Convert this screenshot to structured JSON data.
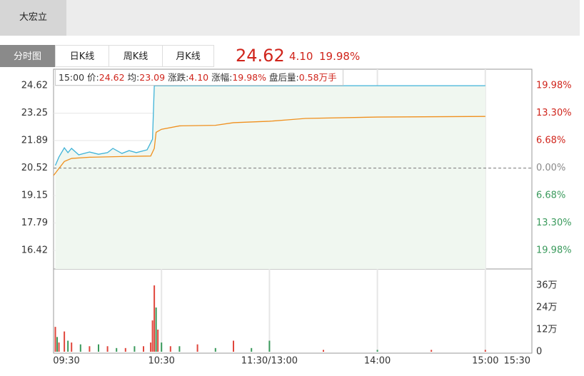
{
  "header": {
    "stock_name": "大宏立"
  },
  "tabs": [
    "分时图",
    "日K线",
    "周K线",
    "月K线"
  ],
  "quote": {
    "price": "24.62",
    "change": "4.10",
    "change_pct": "19.98%"
  },
  "info": [
    [
      "15:00",
      ""
    ],
    [
      "价:",
      "24.62"
    ],
    [
      "均:",
      "23.09"
    ],
    [
      "涨跌:",
      "4.10"
    ],
    [
      "涨幅:",
      "19.98%"
    ],
    [
      "盘后量:",
      "0.58万手"
    ]
  ],
  "chart_data": {
    "type": "line",
    "xticks": [
      "09:30",
      "10:30",
      {
        "value": "11:30",
        "label": "11:30/13:00"
      },
      "14:00",
      "15:00",
      "15:30"
    ],
    "ylim": [
      15.5,
      25.44
    ],
    "yticks": [
      24.62,
      23.25,
      21.89,
      20.52,
      19.15,
      17.79,
      16.42
    ],
    "y2lim": [
      -24.46,
      23.98
    ],
    "y2ticks": [
      {
        "value": 19.98,
        "label": "19.98%"
      },
      {
        "value": 13.3,
        "label": "13.30%"
      },
      {
        "value": 6.68,
        "label": "6.68%"
      },
      {
        "value": 0,
        "label": "0.00%"
      },
      {
        "value": -6.68,
        "label": "6.68%"
      },
      {
        "value": -13.3,
        "label": "13.30%"
      },
      {
        "value": -19.98,
        "label": "19.98%"
      }
    ],
    "y2_colors": {
      "up": "#d0251c",
      "flat": "#888888",
      "down": "#3a9a5c"
    },
    "baseline": 20.52,
    "grid": true,
    "series": [
      {
        "color": "#3fb3d8",
        "fill": "#f0f7f0",
        "x": [
          "09:31",
          "09:33",
          "09:36",
          "09:38",
          "09:40",
          "09:44",
          "09:50",
          "09:55",
          "10:00",
          "10:03",
          "10:08",
          "10:12",
          "10:16",
          "10:22",
          "10:25",
          "10:26",
          "15:00"
        ],
        "values": [
          20.65,
          21.07,
          21.53,
          21.29,
          21.5,
          21.18,
          21.32,
          21.21,
          21.29,
          21.5,
          21.25,
          21.39,
          21.29,
          21.43,
          21.96,
          24.62,
          24.62
        ]
      },
      {
        "color": "#f0901e",
        "x": [
          "09:30",
          "09:33",
          "09:36",
          "09:40",
          "09:50",
          "10:10",
          "10:24",
          "10:26",
          "10:27",
          "10:30",
          "10:40",
          "11:00",
          "11:10",
          "11:30",
          "13:10",
          "13:20",
          "14:00",
          "15:00"
        ],
        "values": [
          20.15,
          20.5,
          20.85,
          21.0,
          21.06,
          21.1,
          21.12,
          21.5,
          22.3,
          22.45,
          22.62,
          22.65,
          22.78,
          22.85,
          22.92,
          22.99,
          23.06,
          23.09
        ]
      }
    ],
    "volume": {
      "ylim": [
        0,
        44.9
      ],
      "yticks": [
        {
          "value": 36,
          "label": "36万"
        },
        {
          "value": 24,
          "label": "24万"
        },
        {
          "value": 12,
          "label": "12万"
        },
        0
      ],
      "x": [
        "09:31",
        "09:32",
        "09:33",
        "09:36",
        "09:38",
        "09:40",
        "09:45",
        "09:50",
        "09:55",
        "10:00",
        "10:05",
        "10:10",
        "10:15",
        "10:20",
        "10:24",
        "10:25",
        "10:26",
        "10:27",
        "10:28",
        "10:30",
        "10:35",
        "10:40",
        "10:50",
        "11:00",
        "11:10",
        "11:20",
        "13:00",
        "13:30",
        "14:00",
        "14:30",
        "15:00"
      ],
      "values": [
        13.5,
        8,
        5,
        11,
        6,
        5,
        4,
        3,
        4,
        3,
        2,
        2,
        3,
        3,
        5,
        17,
        36,
        24,
        12,
        5,
        3,
        3,
        4,
        2,
        6,
        2,
        6,
        1,
        1,
        1,
        1
      ],
      "colors": [
        "#e0463c",
        "#3a9a5c",
        "#e0463c",
        "#e0463c",
        "#3a9a5c",
        "#e0463c",
        "#3a9a5c",
        "#e0463c",
        "#3a9a5c",
        "#e0463c",
        "#3a9a5c",
        "#e0463c",
        "#3a9a5c",
        "#e0463c",
        "#e0463c",
        "#e0463c",
        "#e0463c",
        "#3a9a5c",
        "#e0463c",
        "#3a9a5c",
        "#e0463c",
        "#3a9a5c",
        "#e0463c",
        "#3a9a5c",
        "#e0463c",
        "#3a9a5c",
        "#3a9a5c",
        "#e0463c",
        "#3a9a5c",
        "#e0463c",
        "#e0463c"
      ]
    }
  }
}
